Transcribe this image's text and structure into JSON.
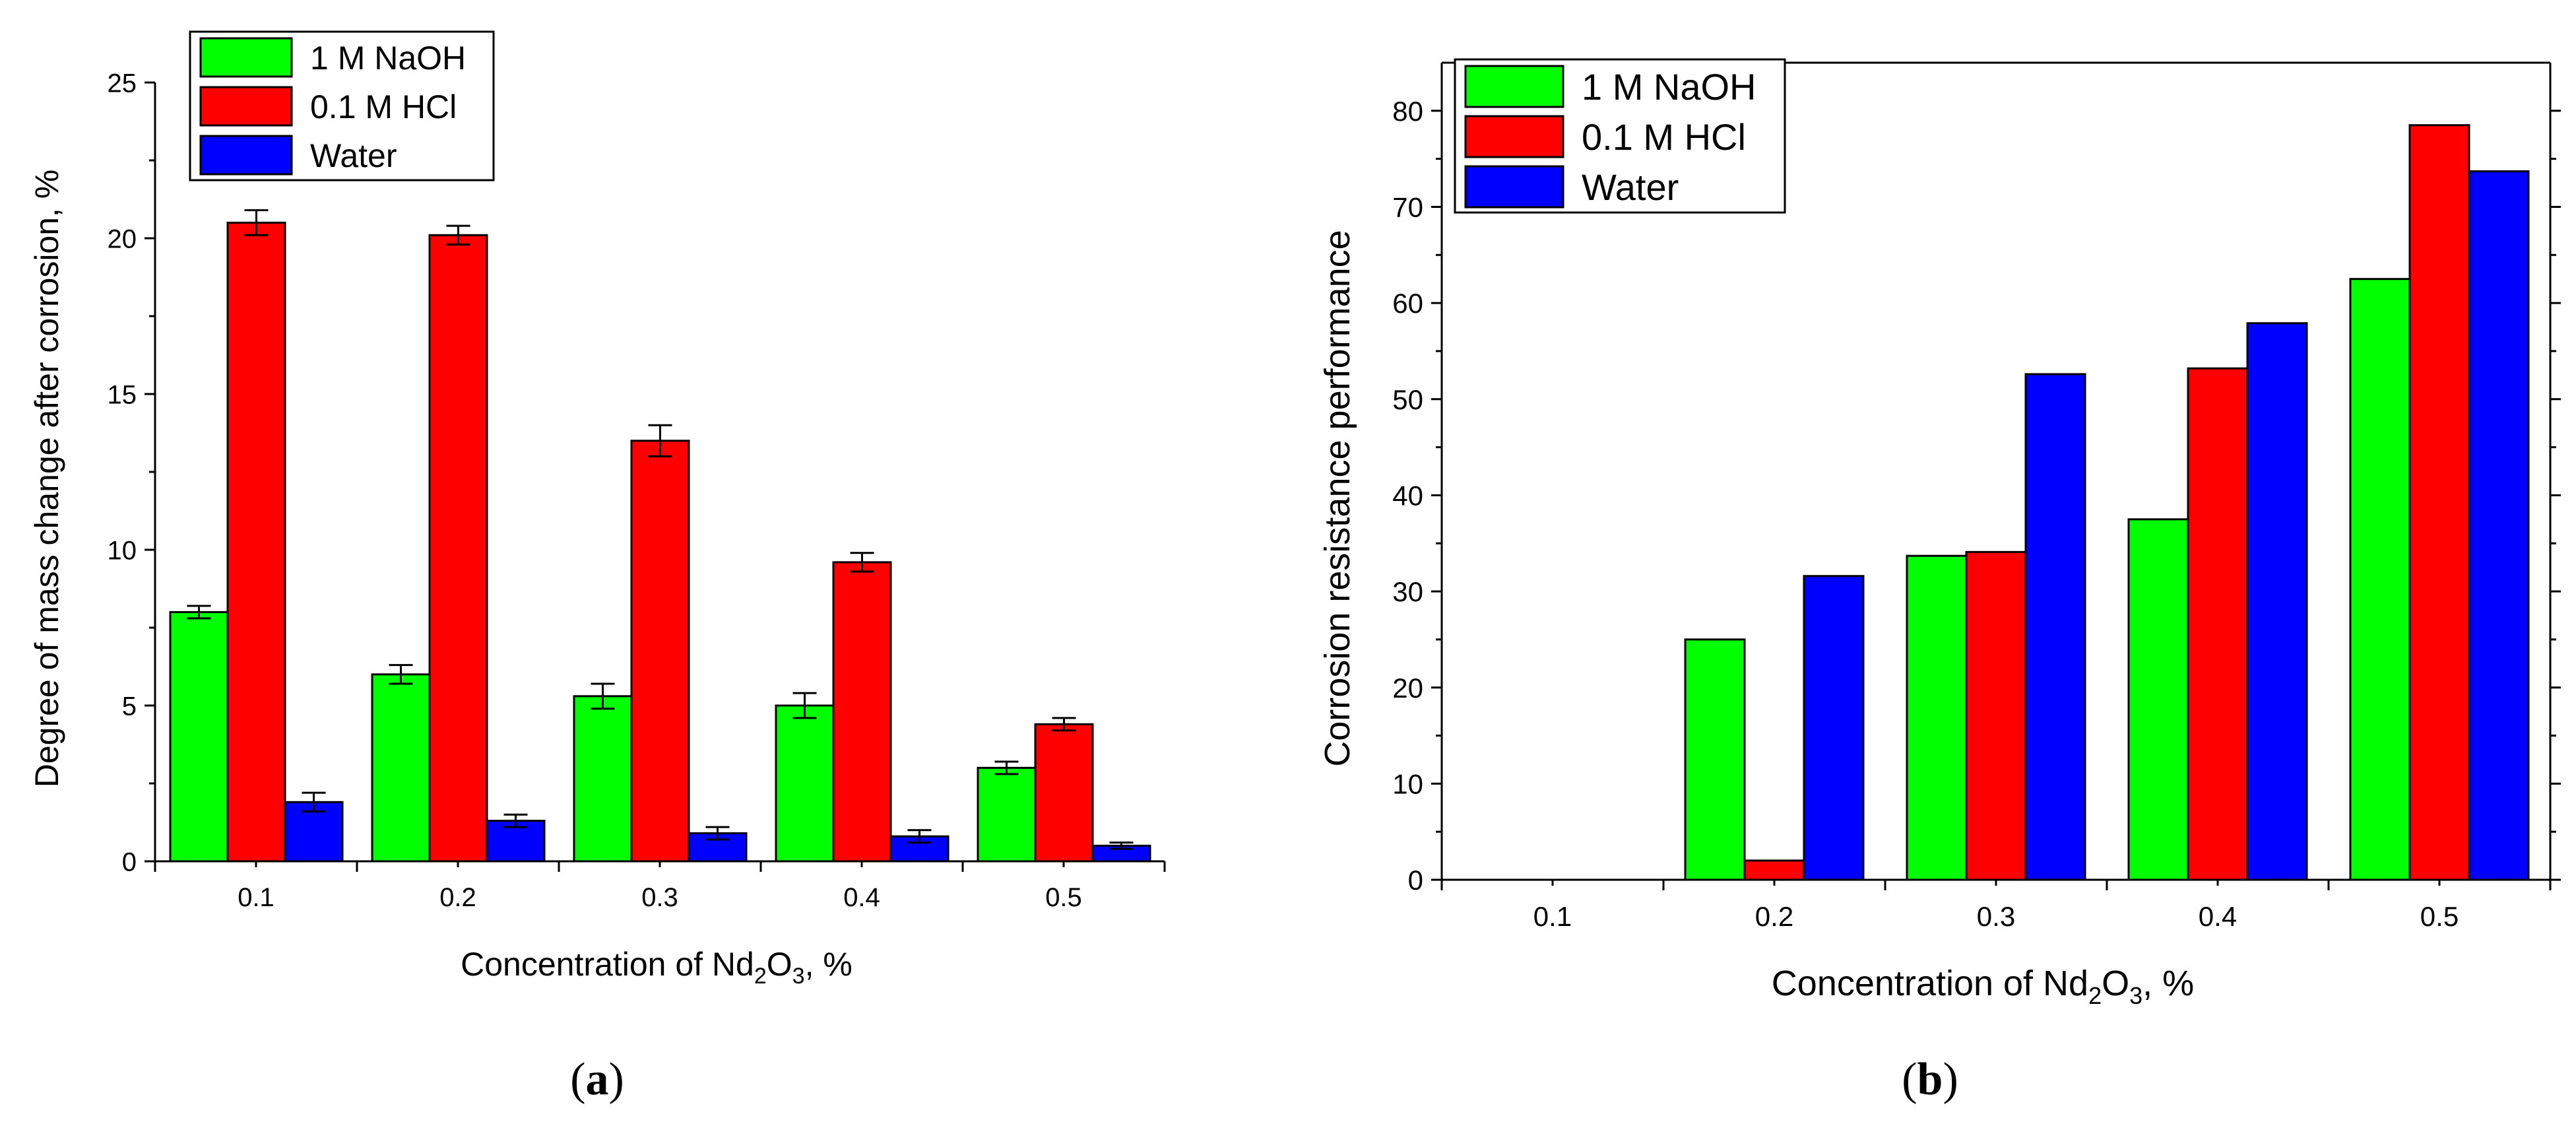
{
  "colors": {
    "naoh": "#00ff00",
    "hcl": "#ff0000",
    "water": "#0000ff",
    "axis": "#000000"
  },
  "chart_data": [
    {
      "panel_label": "a",
      "type": "bar",
      "title": "",
      "xlabel": {
        "pre": "Concentration of Nd",
        "sub1": "2",
        "mid": "O",
        "sub2": "3",
        "post": ", %"
      },
      "ylabel": "Degree of mass change after corrosion, %",
      "ylim": [
        0,
        25
      ],
      "yticks": [
        "0",
        "5",
        "10",
        "15",
        "20",
        "25"
      ],
      "categories": [
        "0.1",
        "0.2",
        "0.3",
        "0.4",
        "0.5"
      ],
      "legend_position": "top-left",
      "series": [
        {
          "name": "1 M NaOH",
          "color": "#00ff00",
          "values": [
            8.0,
            6.0,
            5.3,
            5.0,
            3.0
          ],
          "errors": [
            0.2,
            0.3,
            0.4,
            0.4,
            0.2
          ]
        },
        {
          "name": "0.1 M HCl",
          "color": "#ff0000",
          "values": [
            20.5,
            20.1,
            13.5,
            9.6,
            4.4
          ],
          "errors": [
            0.4,
            0.3,
            0.5,
            0.3,
            0.2
          ]
        },
        {
          "name": "Water",
          "color": "#0000ff",
          "values": [
            1.9,
            1.3,
            0.9,
            0.8,
            0.5
          ],
          "errors": [
            0.3,
            0.2,
            0.2,
            0.2,
            0.1
          ]
        }
      ]
    },
    {
      "panel_label": "b",
      "type": "bar",
      "title": "",
      "xlabel": {
        "pre": "Concentration of Nd",
        "sub1": "2",
        "mid": "O",
        "sub2": "3",
        "post": ", %"
      },
      "ylabel": "Corrosion resistance performance",
      "ylim": [
        0,
        85
      ],
      "yticks": [
        "0",
        "10",
        "20",
        "30",
        "40",
        "50",
        "60",
        "70",
        "80"
      ],
      "categories": [
        "0.1",
        "0.2",
        "0.3",
        "0.4",
        "0.5"
      ],
      "legend_position": "top-left",
      "series": [
        {
          "name": "1 M NaOH",
          "color": "#00ff00",
          "values": [
            0,
            25.0,
            33.7,
            37.5,
            62.5
          ]
        },
        {
          "name": "0.1 M HCl",
          "color": "#ff0000",
          "values": [
            0,
            2.0,
            34.1,
            53.2,
            78.5
          ]
        },
        {
          "name": "Water",
          "color": "#0000ff",
          "values": [
            0,
            31.6,
            52.6,
            57.9,
            73.7
          ]
        }
      ]
    }
  ]
}
